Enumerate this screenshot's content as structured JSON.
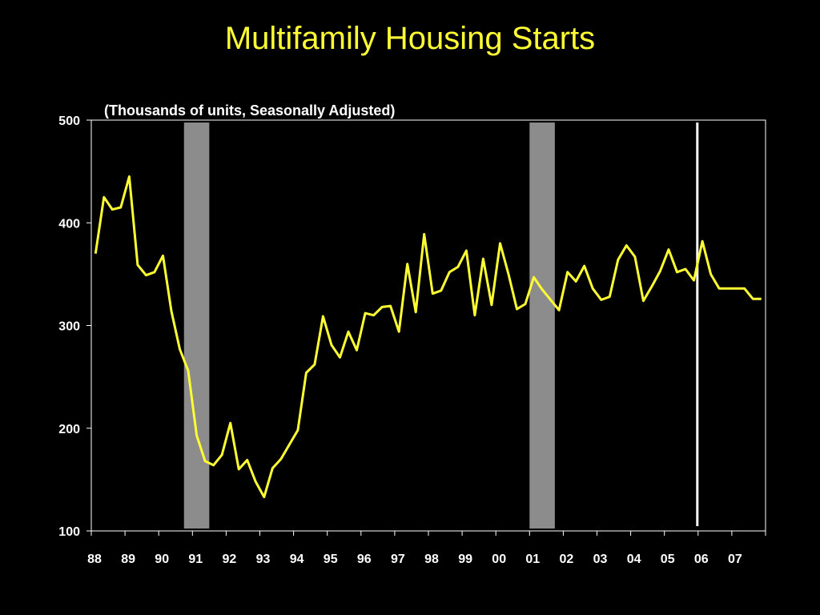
{
  "title": "Multifamily Housing Starts",
  "subtitle": "(Thousands of units, Seasonally Adjusted)",
  "colors": {
    "background": "#000000",
    "title": "#ffff33",
    "line": "#ffff33",
    "axis": "#ffffff",
    "recession": "#8c8c8c",
    "marker": "#ffffff"
  },
  "chart_data": {
    "type": "line",
    "title": "Multifamily Housing Starts",
    "subtitle": "(Thousands of units, Seasonally Adjusted)",
    "xlabel": "",
    "ylabel": "",
    "xlim": [
      1988.0,
      2008.0
    ],
    "ylim": [
      100,
      500
    ],
    "yticks": [
      100,
      200,
      300,
      400,
      500
    ],
    "xtick_labels": [
      "88",
      "89",
      "90",
      "91",
      "92",
      "93",
      "94",
      "95",
      "96",
      "97",
      "98",
      "99",
      "00",
      "01",
      "02",
      "03",
      "04",
      "05",
      "06",
      "07"
    ],
    "xtick_years": [
      1988,
      1989,
      1990,
      1991,
      1992,
      1993,
      1994,
      1995,
      1996,
      1997,
      1998,
      1999,
      2000,
      2001,
      2002,
      2003,
      2004,
      2005,
      2006,
      2007
    ],
    "grid": false,
    "recession_shading": [
      {
        "start": 1990.75,
        "end": 1991.5
      },
      {
        "start": 2001.0,
        "end": 2001.75
      }
    ],
    "vertical_marker_x": 2006.0,
    "series": [
      {
        "x": [
          1988.0,
          1988.25,
          1988.5,
          1988.75,
          1989.0,
          1989.25,
          1989.5,
          1989.75,
          1990.0,
          1990.25,
          1990.5,
          1990.75,
          1991.0,
          1991.25,
          1991.5,
          1991.75,
          1992.0,
          1992.25,
          1992.5,
          1992.75,
          1993.0,
          1993.25,
          1993.5,
          1993.75,
          1994.0,
          1994.25,
          1994.5,
          1994.75,
          1995.0,
          1995.25,
          1995.5,
          1995.75,
          1996.0,
          1996.25,
          1996.5,
          1996.75,
          1997.0,
          1997.25,
          1997.5,
          1997.75,
          1998.0,
          1998.25,
          1998.5,
          1998.75,
          1999.0,
          1999.25,
          1999.5,
          1999.75,
          2000.0,
          2000.25,
          2000.5,
          2000.75,
          2001.0,
          2001.25,
          2001.5,
          2001.75,
          2002.0,
          2002.25,
          2002.5,
          2002.75,
          2003.0,
          2003.25,
          2003.5,
          2003.75,
          2004.0,
          2004.25,
          2004.5,
          2004.75,
          2005.0,
          2005.25,
          2005.5,
          2005.75,
          2006.0,
          2006.25,
          2006.5,
          2006.75,
          2007.0,
          2007.25,
          2007.5,
          2007.75
        ],
        "values": [
          370,
          425,
          413,
          415,
          445,
          359,
          349,
          352,
          368,
          314,
          277,
          256,
          193,
          168,
          164,
          174,
          205,
          160,
          169,
          148,
          133,
          161,
          170,
          184,
          198,
          254,
          262,
          309,
          281,
          269,
          294,
          276,
          312,
          310,
          318,
          319,
          294,
          360,
          313,
          389,
          331,
          334,
          352,
          357,
          373,
          310,
          365,
          320,
          380,
          350,
          316,
          321,
          347,
          335,
          325,
          315,
          352,
          343,
          358,
          336,
          325,
          328,
          364,
          378,
          367,
          324,
          338,
          353,
          374,
          352,
          355,
          344,
          382,
          350,
          336,
          336,
          336,
          336,
          326,
          326
        ]
      }
    ]
  }
}
